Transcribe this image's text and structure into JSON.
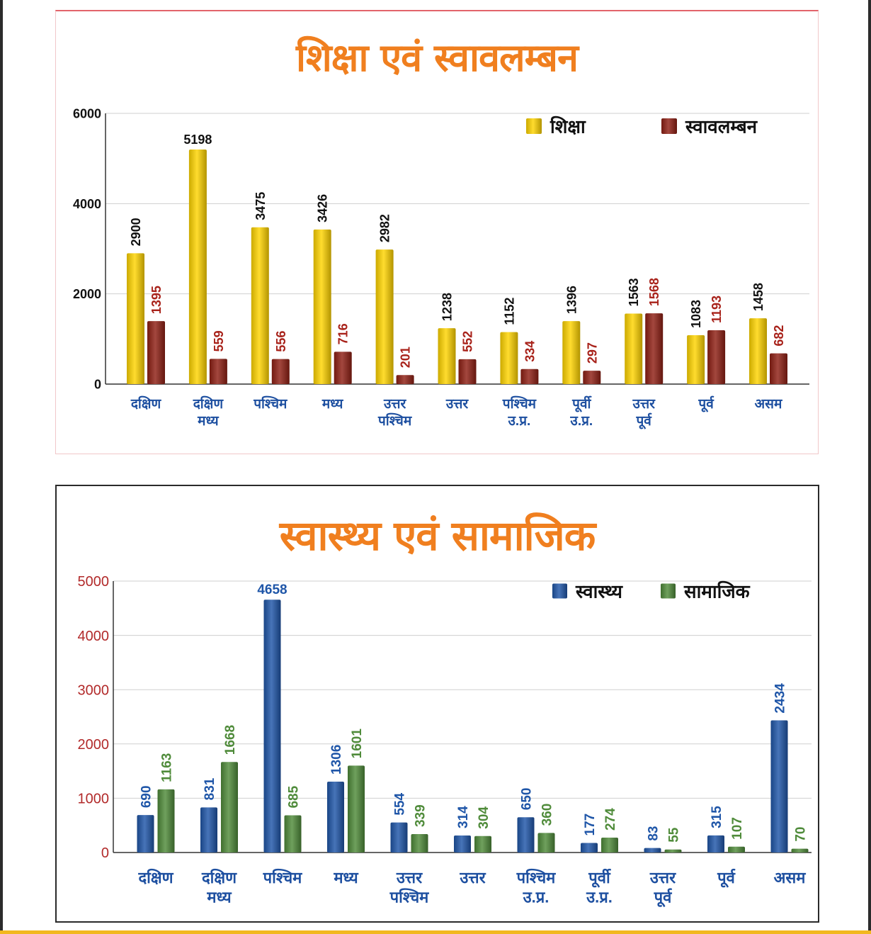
{
  "colors": {
    "title": "#f07f1f",
    "category_label": "#1d4fa0",
    "grid": "#cfcfcf",
    "axis": "#333333"
  },
  "chart_data": [
    {
      "type": "bar",
      "title": "शिक्षा एवं स्वावलम्बन",
      "categories": [
        "दक्षिण",
        "दक्षिण मध्य",
        "पश्चिम",
        "मध्य",
        "उत्तर पश्चिम",
        "उत्तर",
        "पश्चिम उ.प्र.",
        "पूर्वी उ.प्र.",
        "उत्तर पूर्व",
        "पूर्व",
        "असम"
      ],
      "series": [
        {
          "name": "शिक्षा",
          "color": "#ffd400",
          "label_color": "#111111",
          "values": [
            2900,
            5198,
            3475,
            3426,
            2982,
            1238,
            1152,
            1396,
            1563,
            1083,
            1458
          ]
        },
        {
          "name": "स्वावलम्बन",
          "color": "#8f1f14",
          "label_color": "#a8221a",
          "values": [
            1395,
            559,
            556,
            716,
            201,
            552,
            334,
            297,
            1568,
            1193,
            682
          ]
        }
      ],
      "ylim": [
        0,
        6000
      ],
      "yticks": [
        0,
        2000,
        4000,
        6000
      ],
      "tick_color": "#111111",
      "grid": true,
      "legend": "top-right"
    },
    {
      "type": "bar",
      "title": "स्वास्थ्य एवं सामाजिक",
      "categories": [
        "दक्षिण",
        "दक्षिण मध्य",
        "पश्चिम",
        "मध्य",
        "उत्तर पश्चिम",
        "उत्तर",
        "पश्चिम उ.प्र.",
        "पूर्वी उ.प्र.",
        "उत्तर पूर्व",
        "पूर्व",
        "असम"
      ],
      "series": [
        {
          "name": "स्वास्थ्य",
          "color": "#1f56a8",
          "label_color": "#1f56a8",
          "values": [
            690,
            831,
            4658,
            1306,
            554,
            314,
            650,
            177,
            83,
            315,
            2434
          ]
        },
        {
          "name": "सामाजिक",
          "color": "#4f8b3a",
          "label_color": "#4f8b3a",
          "values": [
            1163,
            1668,
            685,
            1601,
            339,
            304,
            360,
            274,
            55,
            107,
            70
          ]
        }
      ],
      "ylim": [
        0,
        5000
      ],
      "yticks": [
        0,
        1000,
        2000,
        3000,
        4000,
        5000
      ],
      "tick_color": "#b22a2a",
      "grid": true,
      "legend": "top-right"
    }
  ]
}
